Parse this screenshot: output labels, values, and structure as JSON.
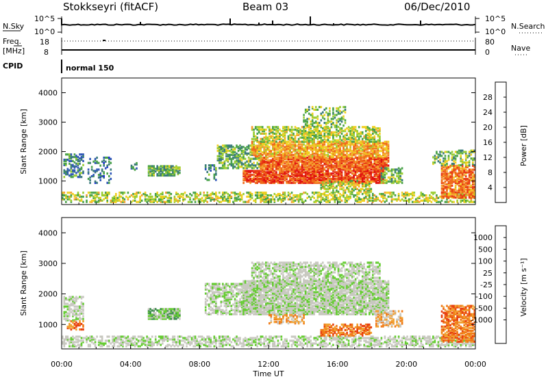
{
  "header": {
    "title": "Stokkseyri (fitACF)",
    "beam": "Beam 03",
    "date": "06/Dec/2010"
  },
  "top_panel": {
    "left_label": "N.Sky",
    "left_ticks": [
      "10^5",
      "10^0"
    ],
    "right_label": "N.Search",
    "right_ticks": [
      "10^5",
      "10^0"
    ]
  },
  "freq_panel": {
    "left_label_line1": "Freq.",
    "left_label_line2": "[MHz]",
    "left_ticks": [
      "18",
      "8"
    ],
    "right_label": "Nave",
    "right_ticks": [
      "80",
      "0"
    ]
  },
  "cpid": {
    "label": "CPID",
    "mode": "normal 150"
  },
  "x_axis": {
    "ticks": [
      "00:00",
      "04:00",
      "08:00",
      "12:00",
      "16:00",
      "20:00",
      "00:00"
    ],
    "label": "Time UT"
  },
  "chart_data": [
    {
      "type": "heatmap",
      "name": "power",
      "xlabel": "Time UT",
      "ylabel": "Slant Range [km]",
      "xlim": [
        0,
        24
      ],
      "ylim": [
        200,
        4500
      ],
      "y_ticks": [
        1000,
        2000,
        3000,
        4000
      ],
      "colorbar": {
        "label": "Power [dB]",
        "ticks": [
          "4",
          "8",
          "12",
          "16",
          "20",
          "24",
          "28"
        ],
        "range": [
          0,
          30
        ],
        "colors": [
          "#1f2fd8",
          "#2e55b8",
          "#3a7a7a",
          "#4aa24a",
          "#9acd32",
          "#f0d020",
          "#f5a030",
          "#ef6a1a",
          "#e83a14",
          "#e01010"
        ]
      },
      "regions": [
        {
          "t0": 0.0,
          "t1": 24.0,
          "r0": 250,
          "r1": 600,
          "v": 14,
          "density": 0.45
        },
        {
          "t0": 0.1,
          "t1": 1.3,
          "r0": 1100,
          "r1": 1900,
          "v": 8,
          "density": 0.45
        },
        {
          "t0": 1.5,
          "t1": 3.0,
          "r0": 900,
          "r1": 1800,
          "v": 7,
          "density": 0.25
        },
        {
          "t0": 4.0,
          "t1": 4.3,
          "r0": 1300,
          "r1": 1600,
          "v": 8,
          "density": 0.4
        },
        {
          "t0": 5.0,
          "t1": 6.8,
          "r0": 1150,
          "r1": 1500,
          "v": 11,
          "density": 0.75
        },
        {
          "t0": 8.3,
          "t1": 8.9,
          "r0": 1000,
          "r1": 1500,
          "v": 9,
          "density": 0.4
        },
        {
          "t0": 9.0,
          "t1": 11.5,
          "r0": 1400,
          "r1": 2200,
          "v": 11,
          "density": 0.55
        },
        {
          "t0": 10.5,
          "t1": 18.7,
          "r0": 900,
          "r1": 1350,
          "v": 25,
          "density": 0.8
        },
        {
          "t0": 11.5,
          "t1": 19.0,
          "r0": 1350,
          "r1": 1800,
          "v": 23,
          "density": 0.85
        },
        {
          "t0": 11.0,
          "t1": 19.0,
          "r0": 1800,
          "r1": 2300,
          "v": 19,
          "density": 0.75
        },
        {
          "t0": 11.0,
          "t1": 18.5,
          "r0": 2300,
          "r1": 2800,
          "v": 14,
          "density": 0.55
        },
        {
          "t0": 14.0,
          "t1": 16.5,
          "r0": 2800,
          "r1": 3500,
          "v": 12,
          "density": 0.3
        },
        {
          "t0": 15.0,
          "t1": 18.0,
          "r0": 600,
          "r1": 1000,
          "v": 15,
          "density": 0.5
        },
        {
          "t0": 18.5,
          "t1": 19.8,
          "r0": 900,
          "r1": 1400,
          "v": 12,
          "density": 0.5
        },
        {
          "t0": 22.0,
          "t1": 24.0,
          "r0": 400,
          "r1": 1500,
          "v": 22,
          "density": 0.7
        },
        {
          "t0": 21.5,
          "t1": 24.0,
          "r0": 1500,
          "r1": 2000,
          "v": 12,
          "density": 0.4
        }
      ]
    },
    {
      "type": "heatmap",
      "name": "velocity",
      "xlabel": "Time UT",
      "ylabel": "Slant Range [km]",
      "xlim": [
        0,
        24
      ],
      "ylim": [
        200,
        4500
      ],
      "y_ticks": [
        1000,
        2000,
        3000,
        4000
      ],
      "colorbar": {
        "label": "Velocity [m s⁻¹]",
        "ticks": [
          "1000",
          "500",
          "100",
          "25",
          "-25",
          "-100",
          "-500",
          "-1000"
        ],
        "colors": [
          "#1f3fd0",
          "#2f6fb0",
          "#3a8a4a",
          "#66cc33",
          "#c8c8c0",
          "#c8c8c0",
          "#f0a030",
          "#f07a18",
          "#e84010",
          "#e01010"
        ]
      },
      "regions": [
        {
          "t0": 0.0,
          "t1": 24.0,
          "r0": 250,
          "r1": 600,
          "c": 4,
          "density": 0.5
        },
        {
          "t0": 0.1,
          "t1": 1.3,
          "r0": 1100,
          "r1": 1900,
          "c": 4,
          "density": 0.5
        },
        {
          "t0": 0.3,
          "t1": 1.3,
          "r0": 800,
          "r1": 1100,
          "c": 7,
          "density": 0.35
        },
        {
          "t0": 5.0,
          "t1": 6.8,
          "r0": 1150,
          "r1": 1500,
          "c": 3,
          "density": 0.8
        },
        {
          "t0": 8.3,
          "t1": 11.5,
          "r0": 1300,
          "r1": 2300,
          "c": 4,
          "density": 0.55
        },
        {
          "t0": 10.5,
          "t1": 19.0,
          "r0": 1300,
          "r1": 2400,
          "c": 4,
          "density": 0.8
        },
        {
          "t0": 11.0,
          "t1": 18.5,
          "r0": 2400,
          "r1": 3000,
          "c": 4,
          "density": 0.55
        },
        {
          "t0": 12.0,
          "t1": 14.0,
          "r0": 1000,
          "r1": 1300,
          "c": 6,
          "density": 0.5
        },
        {
          "t0": 15.0,
          "t1": 18.0,
          "r0": 600,
          "r1": 1000,
          "c": 7,
          "density": 0.6
        },
        {
          "t0": 18.2,
          "t1": 19.8,
          "r0": 900,
          "r1": 1400,
          "c": 6,
          "density": 0.5
        },
        {
          "t0": 22.0,
          "t1": 24.0,
          "r0": 400,
          "r1": 1600,
          "c": 7,
          "density": 0.65
        }
      ]
    }
  ]
}
